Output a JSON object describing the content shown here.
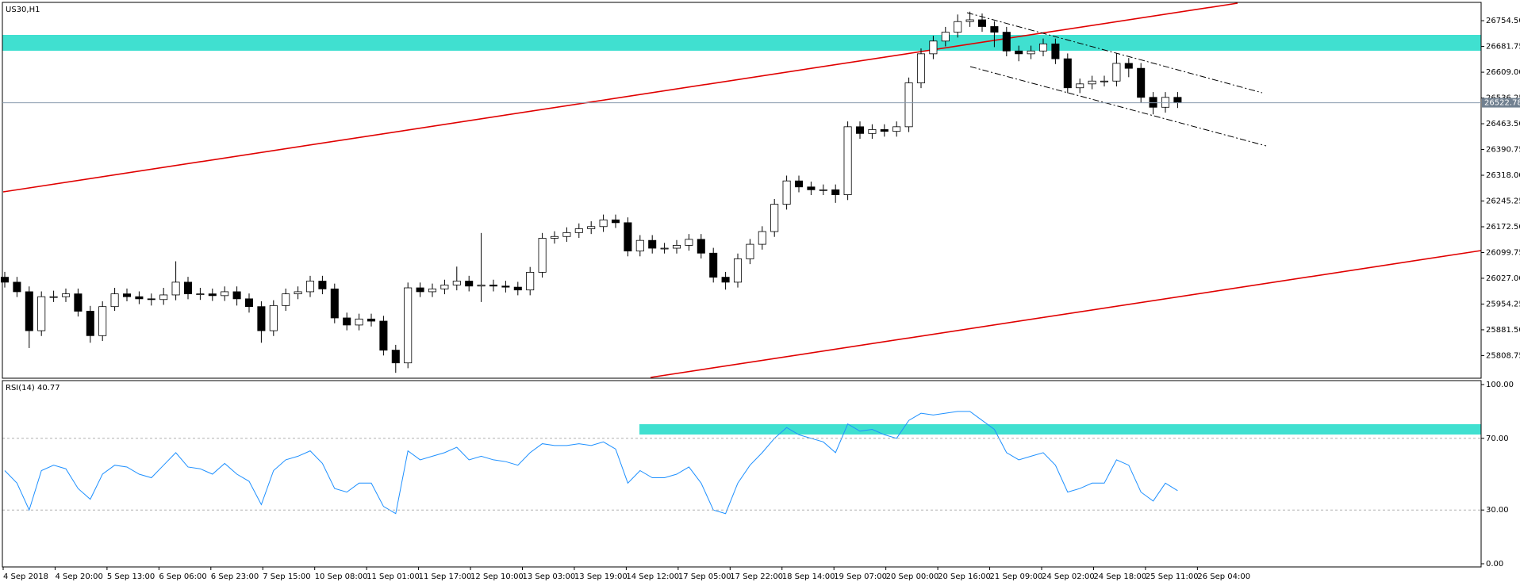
{
  "chart_data": [
    {
      "type": "candlestick",
      "title": "US30,H1",
      "up_color": "#ffffff",
      "down_color": "#000000",
      "outline": "#000000",
      "ylim": [
        25747,
        26804
      ],
      "yticks": [
        {
          "value": 26754.5,
          "label": "26754.50"
        },
        26681.75,
        {
          "value": 26609,
          "label": "26609.00"
        },
        26536.25,
        {
          "value": 26463.5,
          "label": "26463.50"
        },
        26390.75,
        {
          "value": 26318,
          "label": "26318.00"
        },
        26245.25,
        {
          "value": 26172.5,
          "label": "26172.50"
        },
        26099.75,
        {
          "value": 26027,
          "label": "26027.00"
        },
        25954.25,
        {
          "value": 25881.5,
          "label": "25881.50"
        },
        25808.75
      ],
      "last_price": 26522.78,
      "open": [
        26030,
        26016,
        25989,
        25879,
        25975,
        25975,
        25983,
        25934,
        25865,
        25947,
        25983,
        25975,
        25969,
        25967,
        25980,
        26016,
        25983,
        25983,
        25978,
        25989,
        25969,
        25947,
        25879,
        25950,
        25983,
        25989,
        26019,
        25997,
        25915,
        25895,
        25912,
        25906,
        25824,
        25788,
        26000,
        25989,
        25997,
        26008,
        26019,
        26005,
        26008,
        26005,
        26002,
        25994,
        26044,
        26140,
        26145,
        26156,
        26167,
        26173,
        26192,
        26184,
        26104,
        26134,
        26112,
        26112,
        26120,
        26137,
        26098,
        26030,
        26016,
        26082,
        26123,
        26159,
        26236,
        26302,
        26285,
        26277,
        26277,
        26263,
        26455,
        26436,
        26447,
        26442,
        26455,
        26579,
        26661,
        26697,
        26722,
        26752,
        26757,
        26738,
        26722,
        26669,
        26661,
        26669,
        26689,
        26647,
        26565,
        26576,
        26584,
        26584,
        26634,
        26620,
        26538,
        26510,
        26538
      ],
      "high": [
        26045,
        26031,
        26004,
        25990,
        25992,
        25998,
        25998,
        25949,
        25962,
        26000,
        25998,
        25990,
        25984,
        26000,
        26075,
        26031,
        26000,
        25998,
        26004,
        26004,
        25984,
        25962,
        25965,
        25998,
        26004,
        26034,
        26034,
        26012,
        25930,
        25927,
        25927,
        25921,
        25839,
        26015,
        26015,
        26012,
        26023,
        26060,
        26034,
        26155,
        26023,
        26020,
        26017,
        26059,
        26155,
        26160,
        26171,
        26182,
        26188,
        26207,
        26207,
        26199,
        26149,
        26149,
        26127,
        26135,
        26152,
        26152,
        26113,
        26045,
        26097,
        26138,
        26174,
        26251,
        26317,
        26317,
        26300,
        26292,
        26292,
        26470,
        26470,
        26462,
        26462,
        26470,
        26594,
        26676,
        26712,
        26737,
        26772,
        26780,
        26775,
        26753,
        26737,
        26684,
        26684,
        26704,
        26704,
        26662,
        26591,
        26599,
        26599,
        26662,
        26649,
        26635,
        26553,
        26553,
        26553
      ],
      "low": [
        26001,
        25974,
        25830,
        25864,
        25960,
        25960,
        25919,
        25845,
        25850,
        25935,
        25962,
        25954,
        25950,
        25952,
        25965,
        25968,
        25966,
        25963,
        25963,
        25950,
        25930,
        25845,
        25864,
        25935,
        25968,
        25974,
        25982,
        25900,
        25880,
        25880,
        25891,
        25809,
        25760,
        25773,
        25974,
        25974,
        25982,
        25993,
        25990,
        25960,
        25990,
        25987,
        25979,
        25979,
        26029,
        26125,
        26130,
        26141,
        26152,
        26158,
        26169,
        26089,
        26089,
        26097,
        26097,
        26097,
        26105,
        26083,
        26015,
        25995,
        26001,
        26067,
        26108,
        26144,
        26221,
        26270,
        26262,
        26262,
        26240,
        26248,
        26421,
        26421,
        26427,
        26427,
        26440,
        26564,
        26646,
        26682,
        26707,
        26737,
        26723,
        26680,
        26654,
        26640,
        26646,
        26654,
        26632,
        26550,
        26550,
        26561,
        26569,
        26569,
        26595,
        26523,
        26490,
        26495,
        26508
      ],
      "close": [
        26016,
        25989,
        25879,
        25975,
        25975,
        25983,
        25934,
        25865,
        25947,
        25983,
        25975,
        25969,
        25967,
        25980,
        26016,
        25983,
        25983,
        25978,
        25989,
        25969,
        25947,
        25879,
        25950,
        25983,
        25989,
        26019,
        25997,
        25915,
        25895,
        25912,
        25906,
        25824,
        25788,
        26000,
        25989,
        25997,
        26008,
        26019,
        26005,
        26008,
        26005,
        26002,
        25994,
        26044,
        26140,
        26145,
        26156,
        26167,
        26173,
        26192,
        26184,
        26104,
        26134,
        26112,
        26112,
        26120,
        26137,
        26098,
        26030,
        26016,
        26082,
        26123,
        26159,
        26236,
        26302,
        26285,
        26277,
        26277,
        26263,
        26455,
        26436,
        26447,
        26442,
        26455,
        26579,
        26661,
        26697,
        26722,
        26752,
        26757,
        26738,
        26722,
        26669,
        26661,
        26669,
        26689,
        26647,
        26565,
        26576,
        26584,
        26584,
        26634,
        26620,
        26538,
        26510,
        26538,
        26523
      ]
    },
    {
      "type": "line",
      "title": "RSI(14) 40.77",
      "color": "#1e90ff",
      "ylim": [
        0,
        100
      ],
      "yticks": [
        {
          "value": 100,
          "label": "100.00"
        },
        {
          "value": 70,
          "label": "70.00"
        },
        {
          "value": 30,
          "label": "30.00"
        },
        {
          "value": 0,
          "label": "0.00"
        }
      ],
      "levels": [
        70,
        30
      ],
      "values": [
        52,
        45,
        30,
        52,
        55,
        53,
        42,
        36,
        50,
        55,
        54,
        50,
        48,
        55,
        62,
        54,
        53,
        50,
        56,
        50,
        46,
        33,
        52,
        58,
        60,
        63,
        56,
        42,
        40,
        45,
        45,
        32,
        28,
        63,
        58,
        60,
        62,
        65,
        58,
        60,
        58,
        57,
        55,
        62,
        67,
        66,
        66,
        67,
        66,
        68,
        64,
        45,
        52,
        48,
        48,
        50,
        54,
        45,
        30,
        28,
        45,
        55,
        62,
        70,
        76,
        72,
        70,
        68,
        62,
        78,
        74,
        75,
        72,
        70,
        80,
        84,
        83,
        84,
        85,
        85,
        80,
        75,
        62,
        58,
        60,
        62,
        55,
        40,
        42,
        45,
        45,
        58,
        55,
        40,
        35,
        45,
        40.77
      ],
      "x_labels": [
        "4 Sep 2018",
        "4 Sep 20:00",
        "5 Sep 13:00",
        "6 Sep 06:00",
        "6 Sep 23:00",
        "7 Sep 15:00",
        "10 Sep 08:00",
        "11 Sep 01:00",
        "11 Sep 17:00",
        "12 Sep 10:00",
        "13 Sep 03:00",
        "13 Sep 19:00",
        "14 Sep 12:00",
        "17 Sep 05:00",
        "17 Sep 22:00",
        "18 Sep 14:00",
        "19 Sep 07:00",
        "20 Sep 00:00",
        "20 Sep 16:00",
        "21 Sep 09:00",
        "24 Sep 02:00",
        "24 Sep 18:00",
        "25 Sep 11:00",
        "26 Sep 04:00"
      ]
    }
  ]
}
